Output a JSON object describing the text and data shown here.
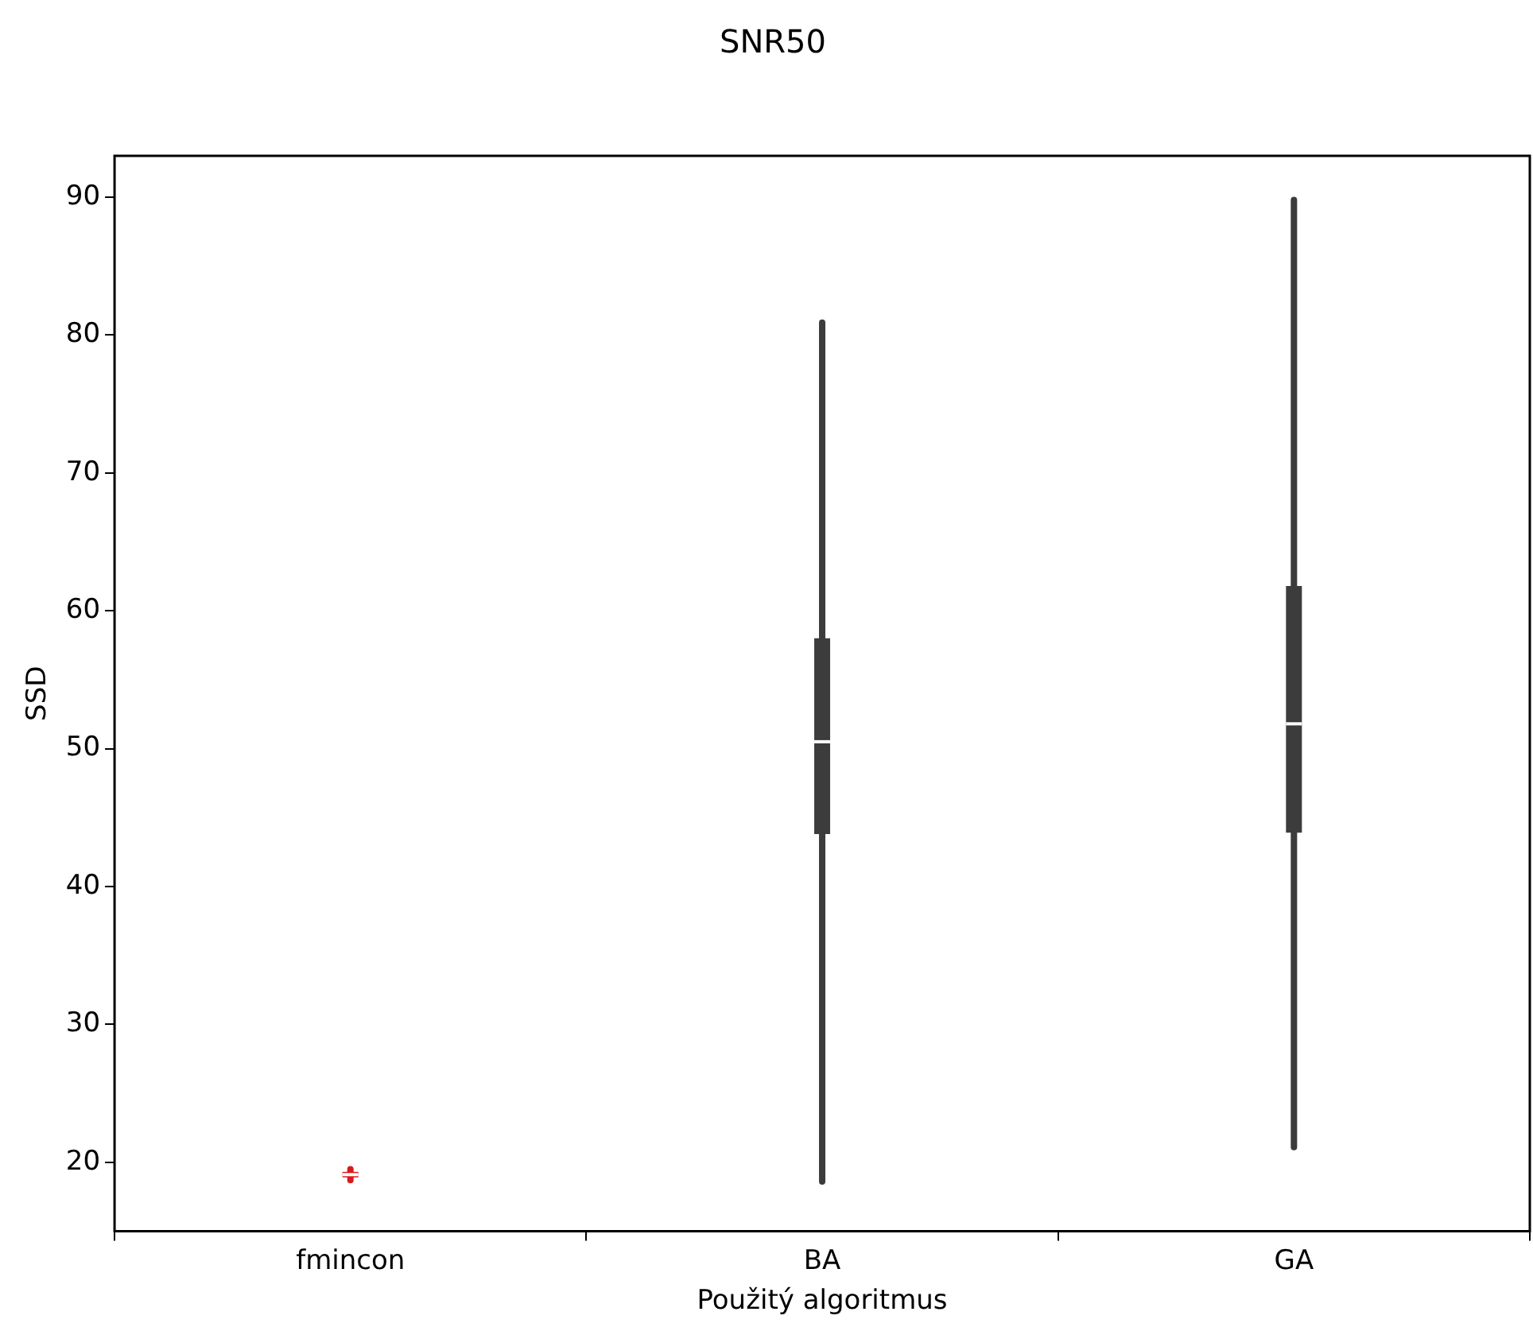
{
  "chart_data": {
    "type": "box",
    "title": "SNR50",
    "xlabel": "Použitý algoritmus",
    "ylabel": "SSD",
    "categories": [
      "fmincon",
      "BA",
      "GA"
    ],
    "colors": [
      "#d9191c",
      "#3c3c3c",
      "#3c3c3c"
    ],
    "boxes": [
      {
        "low": 18.7,
        "q1": 18.9,
        "median": 19.1,
        "q3": 19.3,
        "high": 19.5
      },
      {
        "low": 18.6,
        "q1": 43.8,
        "median": 50.5,
        "q3": 58,
        "high": 80.9
      },
      {
        "low": 21.1,
        "q1": 43.9,
        "median": 51.8,
        "q3": 61.8,
        "high": 89.8
      }
    ],
    "ylim": [
      15,
      93
    ],
    "yticks": [
      20,
      30,
      40,
      50,
      60,
      70,
      80,
      90
    ],
    "grid": false,
    "legend": false
  }
}
